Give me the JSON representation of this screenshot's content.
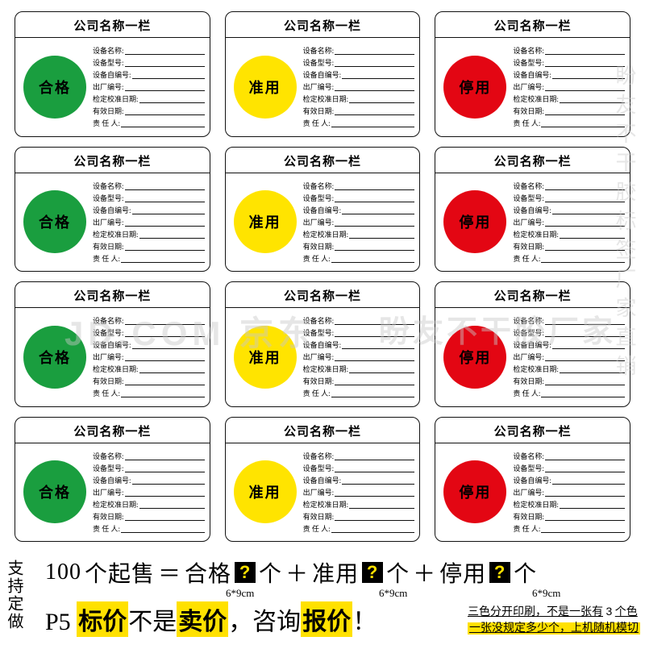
{
  "card": {
    "header": "公司名称一栏",
    "fields": [
      "设备名称:",
      "设备型号:",
      "设备自编号:",
      "出厂编号:",
      "检定校准日期:",
      "有效日期:",
      "责 任 人:"
    ]
  },
  "statuses": [
    {
      "label": "合格",
      "circle_color": "#1a9e3f",
      "text_color": "#000000"
    },
    {
      "label": "准用",
      "circle_color": "#ffe400",
      "text_color": "#000000"
    },
    {
      "label": "停用",
      "circle_color": "#e30613",
      "text_color": "#000000"
    }
  ],
  "grid": {
    "rows": 4,
    "cols": 3
  },
  "watermarks": {
    "jd": "JD.COM",
    "jd_cn": "京东",
    "brand": "盼友不干胶厂家",
    "brand_vertical": "盼友不干胶标签厂家直销"
  },
  "bottom": {
    "vertical": "支持定做",
    "moq_prefix": "100",
    "moq_unit": "个起售",
    "eq": "＝",
    "plus": "＋",
    "count_unit": "个",
    "size": "6*9cm",
    "p5": "P5",
    "price_1": "标价",
    "price_2": "不是",
    "price_3": "卖价",
    "price_4": "，咨询",
    "price_5": "报价",
    "price_6": "！",
    "note1a": "三色分开印刷，不是一张有",
    "note1b": "3",
    "note1c": "个色",
    "note2": "一张没规定多少个，上机随机模切",
    "q": "?"
  },
  "colors": {
    "border": "#111111",
    "bg": "#ffffff",
    "highlight": "#ffe100",
    "qmark_fg": "#ffe100",
    "qmark_bg": "#000000"
  }
}
